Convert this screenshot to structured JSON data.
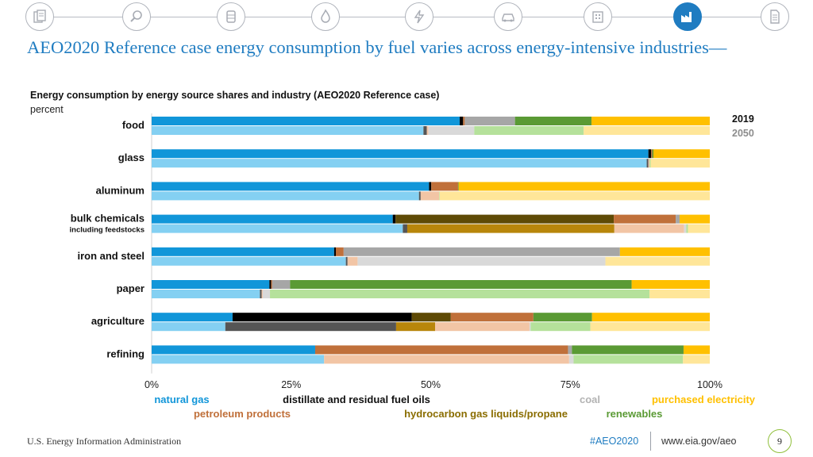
{
  "nav": {
    "icons": [
      "documents-icon",
      "search-analysis-icon",
      "oil-barrel-icon",
      "natural-gas-flame-icon",
      "electricity-bolt-icon",
      "transportation-car-icon",
      "buildings-icon",
      "industry-factory-icon",
      "report-document-icon"
    ],
    "active_index": 7,
    "active_color": "#1f7cc1"
  },
  "title": "AEO2020 Reference case energy consumption by fuel varies across energy-intensive industries—",
  "footer": {
    "source": "U.S. Energy Information Administration",
    "hashtag": "#AEO2020",
    "url": "www.eia.gov/aeo",
    "page": "9"
  },
  "chart_data": {
    "type": "bar",
    "orientation": "horizontal",
    "stacked": true,
    "title": "Energy consumption by energy source shares and industry (AEO2020 Reference case)",
    "ylabel": "percent",
    "xlim": [
      0,
      100
    ],
    "x_ticks": [
      "0%",
      "25%",
      "50%",
      "75%",
      "100%"
    ],
    "x_tick_values": [
      0,
      25,
      50,
      75,
      100
    ],
    "year_labels": {
      "y2019": {
        "label": "2019",
        "color": "#111111"
      },
      "y2050": {
        "label": "2050",
        "color": "#8c8c8c"
      }
    },
    "series": [
      {
        "name": "natural gas",
        "color2019": "#1196d9",
        "color2050": "#84d0f2",
        "label_color": "#1196d9"
      },
      {
        "name": "distillate and residual fuel oils",
        "color2019": "#000000",
        "color2050": "#555555",
        "label_color": "#111111"
      },
      {
        "name": "hydrocarbon gas liquids/propane",
        "color2019": "#5e4a05",
        "color2050": "#b8860b",
        "label_color": "#8a6d00"
      },
      {
        "name": "petroleum products",
        "color2019": "#c0703a",
        "color2050": "#f2c5a5",
        "label_color": "#c0703a"
      },
      {
        "name": "coal",
        "color2019": "#a6a6a6",
        "color2050": "#d9d9d9",
        "label_color": "#b3b3b3"
      },
      {
        "name": "renewables",
        "color2019": "#5a9a34",
        "color2050": "#b5e19b",
        "label_color": "#5a9a34"
      },
      {
        "name": "purchased electricity",
        "color2019": "#ffc000",
        "color2050": "#ffe699",
        "label_color": "#ffc000"
      }
    ],
    "legend": [
      {
        "series": 0,
        "text": "natural gas"
      },
      {
        "series": 1,
        "text": "distillate and residual fuel oils"
      },
      {
        "series": 4,
        "text": "coal"
      },
      {
        "series": 6,
        "text": "purchased electricity"
      },
      {
        "series": 3,
        "text": "petroleum products"
      },
      {
        "series": 2,
        "text": "hydrocarbon gas liquids/propane"
      },
      {
        "series": 5,
        "text": "renewables"
      }
    ],
    "categories": [
      {
        "label": "food",
        "sublabel": "",
        "y2019": [
          55.2,
          0.6,
          0,
          0.3,
          9.0,
          13.7,
          21.2
        ],
        "y2050": [
          48.7,
          0.6,
          0,
          0.3,
          8.2,
          19.6,
          22.6
        ]
      },
      {
        "label": "glass",
        "sublabel": "",
        "y2019": [
          89.0,
          0.5,
          0,
          0.2,
          0,
          0.2,
          10.1
        ],
        "y2050": [
          88.7,
          0.3,
          0,
          0.2,
          0,
          0.2,
          10.6
        ]
      },
      {
        "label": "aluminum",
        "sublabel": "",
        "y2019": [
          49.7,
          0.4,
          0,
          4.8,
          0,
          0.1,
          45.0
        ],
        "y2050": [
          47.9,
          0.3,
          0,
          3.3,
          0,
          0.1,
          48.4
        ]
      },
      {
        "label": "bulk chemicals",
        "sublabel": "including feedstocks",
        "y2019": [
          43.2,
          0.5,
          39.1,
          11.1,
          0.7,
          0,
          5.4
        ],
        "y2050": [
          45.0,
          0.8,
          37.1,
          12.5,
          0.4,
          0.3,
          3.9
        ]
      },
      {
        "label": "iron and steel",
        "sublabel": "",
        "y2019": [
          32.7,
          0.3,
          0,
          1.4,
          49.5,
          0,
          16.1
        ],
        "y2050": [
          34.8,
          0.3,
          0,
          1.8,
          44.4,
          0,
          18.7
        ]
      },
      {
        "label": "paper",
        "sublabel": "",
        "y2019": [
          21.1,
          0.3,
          0,
          0.2,
          3.2,
          61.2,
          14.0
        ],
        "y2050": [
          19.4,
          0.3,
          0,
          0.2,
          1.3,
          68.0,
          10.8
        ]
      },
      {
        "label": "agriculture",
        "sublabel": "",
        "y2019": [
          14.5,
          32.1,
          7.0,
          14.8,
          0,
          10.5,
          21.1
        ],
        "y2050": [
          13.2,
          30.6,
          7.0,
          16.9,
          0.2,
          10.7,
          21.4
        ]
      },
      {
        "label": "refining",
        "sublabel": "",
        "y2019": [
          29.3,
          0,
          0,
          45.3,
          0.7,
          20.0,
          4.7
        ],
        "y2050": [
          30.9,
          0,
          0,
          43.9,
          0.8,
          19.6,
          4.8
        ]
      }
    ]
  }
}
